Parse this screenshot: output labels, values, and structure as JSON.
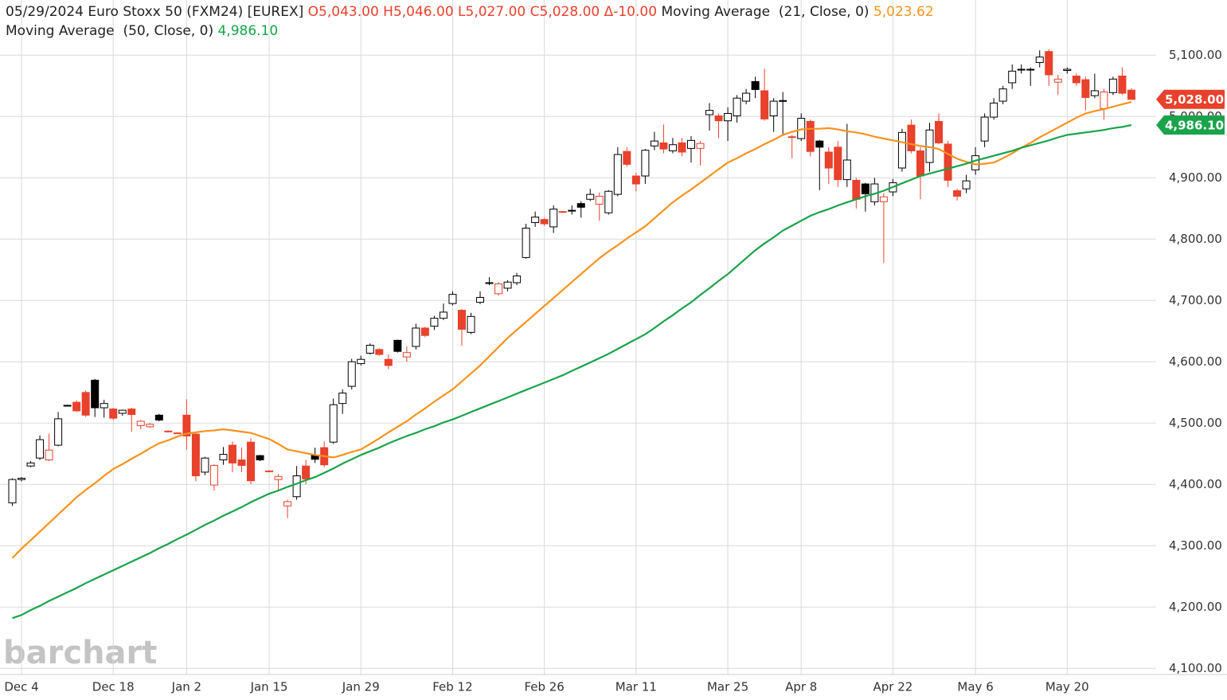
{
  "chart_data": {
    "type": "candlestick",
    "title": "05/29/2024 Euro Stoxx 50 (FXM24) [EUREX]",
    "title_color": "#222222",
    "ohlc_label": "O5,043.00 H5,046.00 L5,027.00 C5,028.00 Δ-10.00",
    "ohlc_color": "#e8412c",
    "watermark": "barchart",
    "up_color": "#000000",
    "down_color": "#e8412c",
    "grid": true,
    "ylim": [
      4090,
      5190
    ],
    "yticks": [
      {
        "value": 4100,
        "label": "4,100.00"
      },
      {
        "value": 4200,
        "label": "4,200.00"
      },
      {
        "value": 4300,
        "label": "4,300.00"
      },
      {
        "value": 4400,
        "label": "4,400.00"
      },
      {
        "value": 4500,
        "label": "4,500.00"
      },
      {
        "value": 4600,
        "label": "4,600.00"
      },
      {
        "value": 4700,
        "label": "4,700.00"
      },
      {
        "value": 4800,
        "label": "4,800.00"
      },
      {
        "value": 4900,
        "label": "4,900.00"
      },
      {
        "value": 5000,
        "label": "5,000.00"
      },
      {
        "value": 5100,
        "label": "5,100.00"
      }
    ],
    "categories": [
      null,
      "Dec 4",
      null,
      null,
      null,
      null,
      null,
      null,
      null,
      null,
      null,
      "Dec 18",
      null,
      null,
      null,
      null,
      null,
      null,
      null,
      "Jan 2",
      null,
      null,
      null,
      null,
      null,
      null,
      null,
      null,
      "Jan 15",
      null,
      null,
      null,
      null,
      null,
      null,
      null,
      null,
      null,
      "Jan 29",
      null,
      null,
      null,
      null,
      null,
      null,
      null,
      null,
      null,
      "Feb 12",
      null,
      null,
      null,
      null,
      null,
      null,
      null,
      null,
      null,
      "Feb 26",
      null,
      null,
      null,
      null,
      null,
      null,
      null,
      null,
      null,
      "Mar 11",
      null,
      null,
      null,
      null,
      null,
      null,
      null,
      null,
      null,
      "Mar 25",
      null,
      null,
      null,
      null,
      null,
      null,
      null,
      "Apr 8",
      null,
      null,
      null,
      null,
      null,
      null,
      null,
      null,
      null,
      "Apr 22",
      null,
      null,
      null,
      null,
      null,
      null,
      null,
      null,
      "May 6",
      null,
      null,
      null,
      null,
      null,
      null,
      null,
      null,
      null,
      "May 20",
      null,
      null,
      null,
      null,
      null,
      null,
      null
    ],
    "open": [
      4370,
      4408,
      4430,
      4443,
      4440,
      4464,
      4528,
      4534,
      4550,
      4570,
      4525,
      4523,
      4516,
      4523,
      4496,
      4494,
      4513,
      4487,
      4484,
      4513,
      4482,
      4420,
      4399,
      4440,
      4464,
      4440,
      4469,
      4447,
      4422,
      4408,
      4365,
      4380,
      4430,
      4448,
      4460,
      4469,
      4532,
      4560,
      4597,
      4614,
      4620,
      4604,
      4635,
      4608,
      4625,
      4655,
      4658,
      4671,
      4695,
      4684,
      4648,
      4697,
      4728,
      4711,
      4720,
      4729,
      4770,
      4827,
      4832,
      4820,
      4845,
      4846,
      4858,
      4865,
      4857,
      4843,
      4873,
      4943,
      4903,
      4903,
      4952,
      4957,
      4944,
      4957,
      4948,
      4948,
      5003,
      5001,
      4993,
      5001,
      5025,
      5057,
      5042,
      5001,
      5025,
      4967,
      4964,
      4992,
      4960,
      4942,
      4950,
      4897,
      4896,
      4890,
      4861,
      4861,
      4877,
      4916,
      4986,
      4944,
      4925,
      4992,
      4955,
      4879,
      4882,
      4913,
      4960,
      4999,
      5025,
      5055,
      5076,
      5077,
      5088,
      5106,
      5056,
      5075,
      5066,
      5060,
      5034,
      5013,
      5039,
      5066,
      5043
    ],
    "high": [
      4410,
      4412,
      4438,
      4480,
      4483,
      4518,
      4530,
      4537,
      4553,
      4572,
      4538,
      4525,
      4522,
      4525,
      4505,
      4500,
      4515,
      4488,
      4485,
      4539,
      4485,
      4445,
      4433,
      4461,
      4470,
      4460,
      4475,
      4448,
      4423,
      4417,
      4375,
      4430,
      4440,
      4460,
      4470,
      4540,
      4555,
      4605,
      4610,
      4630,
      4622,
      4612,
      4636,
      4625,
      4662,
      4657,
      4675,
      4695,
      4715,
      4686,
      4680,
      4715,
      4738,
      4730,
      4733,
      4745,
      4825,
      4845,
      4835,
      4855,
      4846,
      4855,
      4862,
      4882,
      4876,
      4880,
      4950,
      4950,
      4908,
      4947,
      4975,
      4987,
      4965,
      4965,
      4968,
      4960,
      5022,
      5005,
      5015,
      5035,
      5045,
      5065,
      5078,
      5030,
      5040,
      4970,
      5005,
      4995,
      4962,
      4950,
      4960,
      4988,
      4900,
      4892,
      4900,
      4875,
      4898,
      4980,
      4995,
      4950,
      4990,
      5005,
      4960,
      4882,
      4905,
      4950,
      5005,
      5030,
      5050,
      5085,
      5085,
      5080,
      5108,
      5110,
      5068,
      5080,
      5070,
      5065,
      5070,
      5045,
      5065,
      5080,
      5046
    ],
    "low": [
      4365,
      4405,
      4428,
      4440,
      4438,
      4462,
      4527,
      4518,
      4510,
      4510,
      4509,
      4505,
      4512,
      4486,
      4490,
      4492,
      4503,
      4485,
      4482,
      4457,
      4405,
      4415,
      4390,
      4432,
      4420,
      4420,
      4400,
      4438,
      4420,
      4390,
      4345,
      4375,
      4400,
      4435,
      4428,
      4466,
      4515,
      4555,
      4594,
      4612,
      4610,
      4588,
      4615,
      4600,
      4620,
      4640,
      4652,
      4668,
      4692,
      4626,
      4645,
      4694,
      4725,
      4708,
      4715,
      4725,
      4768,
      4820,
      4822,
      4810,
      4843,
      4840,
      4835,
      4862,
      4830,
      4840,
      4870,
      4918,
      4878,
      4890,
      4945,
      4940,
      4940,
      4935,
      4925,
      4920,
      4977,
      4965,
      4960,
      4990,
      5020,
      5030,
      4993,
      4975,
      4970,
      4932,
      4960,
      4935,
      4880,
      4890,
      4885,
      4885,
      4850,
      4845,
      4855,
      4761,
      4870,
      4910,
      4940,
      4865,
      4910,
      4955,
      4885,
      4863,
      4875,
      4905,
      4950,
      4995,
      5020,
      5045,
      5070,
      5050,
      5080,
      5050,
      5035,
      5070,
      5050,
      5010,
      5030,
      4995,
      5035,
      5035,
      5027
    ],
    "close": [
      4408,
      4410,
      4435,
      4473,
      4456,
      4507,
      4529,
      4520,
      4513,
      4525,
      4532,
      4508,
      4521,
      4514,
      4503,
      4498,
      4505,
      4486,
      4483,
      4479,
      4414,
      4443,
      4431,
      4449,
      4435,
      4431,
      4406,
      4440,
      4421,
      4413,
      4372,
      4414,
      4409,
      4441,
      4432,
      4530,
      4549,
      4600,
      4604,
      4627,
      4612,
      4594,
      4617,
      4615,
      4655,
      4643,
      4671,
      4681,
      4710,
      4653,
      4674,
      4705,
      4729,
      4727,
      4730,
      4740,
      4818,
      4836,
      4825,
      4849,
      4844,
      4847,
      4852,
      4873,
      4870,
      4878,
      4938,
      4922,
      4890,
      4945,
      4960,
      4947,
      4954,
      4942,
      4961,
      4956,
      5010,
      4993,
      5005,
      5030,
      5038,
      5044,
      4996,
      5025,
      5026,
      4966,
      4997,
      4943,
      4950,
      4916,
      4897,
      4929,
      4865,
      4874,
      4890,
      4869,
      4892,
      4974,
      4944,
      4903,
      4978,
      4957,
      4896,
      4870,
      4895,
      4936,
      4999,
      5022,
      5045,
      5074,
      5077,
      5077,
      5097,
      5068,
      5061,
      5077,
      5055,
      5031,
      5042,
      5040,
      5061,
      5038,
      5028
    ],
    "series": [
      {
        "name": "Moving Average  (21, Close, 0)",
        "color": "#f7931e",
        "last_label": "5,023.62",
        "values": [
          4280,
          4295,
          4309,
          4323,
          4337,
          4351,
          4365,
          4379,
          4391,
          4402,
          4414,
          4425,
          4433,
          4442,
          4450,
          4459,
          4467,
          4472,
          4478,
          4483,
          4485,
          4487,
          4488,
          4490,
          4488,
          4486,
          4484,
          4479,
          4474,
          4466,
          4457,
          4454,
          4451,
          4448,
          4446,
          4444,
          4448,
          4453,
          4457,
          4466,
          4475,
          4485,
          4494,
          4503,
          4514,
          4524,
          4535,
          4545,
          4555,
          4568,
          4581,
          4594,
          4609,
          4624,
          4639,
          4652,
          4665,
          4678,
          4691,
          4704,
          4717,
          4730,
          4743,
          4756,
          4769,
          4780,
          4790,
          4801,
          4811,
          4821,
          4834,
          4847,
          4860,
          4871,
          4881,
          4892,
          4903,
          4914,
          4925,
          4932,
          4940,
          4947,
          4955,
          4962,
          4970,
          4975,
          4979,
          4980,
          4980,
          4981,
          4979,
          4976,
          4974,
          4971,
          4967,
          4964,
          4961,
          4958,
          4955,
          4952,
          4950,
          4947,
          4939,
          4931,
          4926,
          4922,
          4923,
          4925,
          4932,
          4940,
          4949,
          4957,
          4966,
          4974,
          4982,
          4990,
          4998,
          5005,
          5009,
          5012,
          5016,
          5020,
          5023.62
        ]
      },
      {
        "name": "Moving Average  (50, Close, 0)",
        "color": "#1aa34a",
        "last_label": "4,986.10",
        "values": [
          4182,
          4187,
          4195,
          4202,
          4210,
          4217,
          4224,
          4231,
          4239,
          4246,
          4253,
          4260,
          4267,
          4274,
          4281,
          4288,
          4296,
          4303,
          4311,
          4318,
          4326,
          4334,
          4341,
          4349,
          4356,
          4363,
          4371,
          4378,
          4385,
          4390,
          4396,
          4401,
          4407,
          4412,
          4419,
          4426,
          4434,
          4441,
          4448,
          4454,
          4460,
          4467,
          4473,
          4479,
          4484,
          4490,
          4495,
          4501,
          4506,
          4512,
          4518,
          4524,
          4530,
          4536,
          4542,
          4548,
          4554,
          4560,
          4566,
          4572,
          4578,
          4585,
          4592,
          4599,
          4606,
          4613,
          4621,
          4629,
          4637,
          4645,
          4655,
          4666,
          4676,
          4687,
          4697,
          4709,
          4720,
          4732,
          4743,
          4756,
          4769,
          4782,
          4793,
          4803,
          4814,
          4822,
          4830,
          4838,
          4844,
          4849,
          4855,
          4860,
          4865,
          4870,
          4874,
          4879,
          4885,
          4891,
          4897,
          4903,
          4907,
          4911,
          4915,
          4919,
          4923,
          4928,
          4932,
          4936,
          4940,
          4944,
          4949,
          4953,
          4957,
          4961,
          4966,
          4970,
          4972,
          4974,
          4976,
          4978,
          4981,
          4983,
          4986.1
        ]
      }
    ],
    "price_markers": [
      {
        "value": 5028,
        "label": "5,028.00",
        "color": "#e8412c"
      },
      {
        "value": 4986.1,
        "label": "4,986.10",
        "color": "#1aa34a"
      }
    ]
  }
}
